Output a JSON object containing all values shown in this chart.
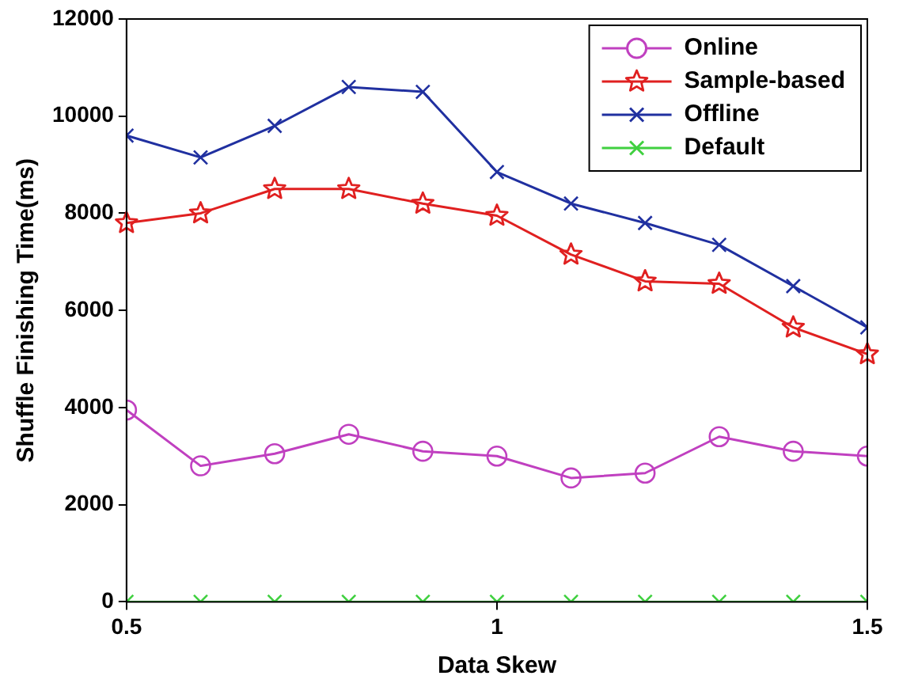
{
  "chart_data": {
    "type": "line",
    "xlabel": "Data Skew",
    "ylabel": "Shuffle Finishing Time(ms)",
    "x": [
      0.5,
      0.6,
      0.7,
      0.8,
      0.9,
      1.0,
      1.1,
      1.2,
      1.3,
      1.4,
      1.5
    ],
    "xlim": [
      0.5,
      1.5
    ],
    "xticks": [
      0.5,
      1,
      1.5
    ],
    "ylim": [
      0,
      12000
    ],
    "yticks": [
      0,
      2000,
      4000,
      6000,
      8000,
      10000,
      12000
    ],
    "grid": false,
    "legend": "top right",
    "line_style": "solid",
    "series": [
      {
        "name": "Online",
        "color": "#c040c0",
        "marker": "circle",
        "values": [
          3950,
          2800,
          3050,
          3450,
          3100,
          3000,
          2550,
          2650,
          3400,
          3100,
          3000
        ]
      },
      {
        "name": "Sample-based",
        "color": "#e02020",
        "marker": "star",
        "values": [
          7800,
          8000,
          8500,
          8500,
          8200,
          7950,
          7150,
          6600,
          6550,
          5650,
          5100
        ]
      },
      {
        "name": "Offline",
        "color": "#2030a0",
        "marker": "cross",
        "values": [
          9600,
          9150,
          9800,
          10600,
          10500,
          8850,
          8200,
          7800,
          7350,
          6500,
          5650
        ]
      },
      {
        "name": "Default",
        "color": "#40d040",
        "marker": "cross",
        "values": [
          0,
          0,
          0,
          0,
          0,
          0,
          0,
          0,
          0,
          0,
          0
        ]
      }
    ]
  }
}
